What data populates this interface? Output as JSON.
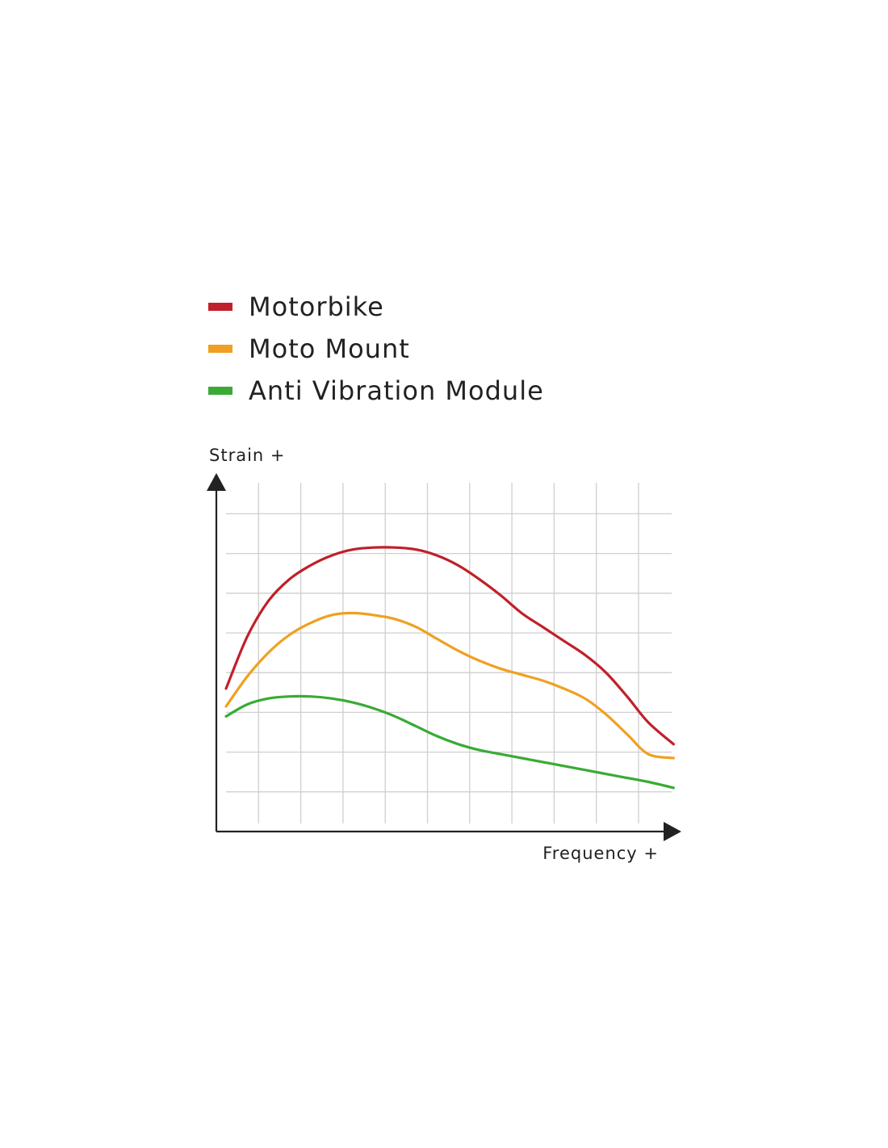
{
  "chart_data": {
    "type": "line",
    "title": "",
    "xlabel": "Frequency +",
    "ylabel": "Strain +",
    "xlim": [
      0,
      10.6
    ],
    "ylim": [
      0,
      8
    ],
    "grid": true,
    "legend_position": "top-left",
    "x": [
      0,
      0.5,
      1,
      1.5,
      2,
      2.5,
      3,
      3.5,
      4,
      4.5,
      5,
      5.5,
      6,
      6.5,
      7,
      7.5,
      8,
      8.5,
      9,
      9.5,
      10,
      10.6
    ],
    "series": [
      {
        "name": "Motorbike",
        "color": "#c0202a",
        "values": [
          3.6,
          4.9,
          5.8,
          6.35,
          6.7,
          6.95,
          7.1,
          7.15,
          7.15,
          7.1,
          6.95,
          6.7,
          6.35,
          5.95,
          5.5,
          5.15,
          4.8,
          4.45,
          4.0,
          3.4,
          2.75,
          2.2
        ]
      },
      {
        "name": "Moto Mount",
        "color": "#f0a020",
        "values": [
          3.15,
          3.9,
          4.5,
          4.95,
          5.25,
          5.45,
          5.5,
          5.45,
          5.35,
          5.15,
          4.85,
          4.55,
          4.3,
          4.1,
          3.95,
          3.8,
          3.6,
          3.35,
          2.95,
          2.45,
          1.95,
          1.85
        ]
      },
      {
        "name": "Anti Vibration Module",
        "color": "#3aaa35",
        "values": [
          2.9,
          3.2,
          3.35,
          3.4,
          3.4,
          3.35,
          3.25,
          3.1,
          2.9,
          2.65,
          2.4,
          2.2,
          2.05,
          1.95,
          1.85,
          1.75,
          1.65,
          1.55,
          1.45,
          1.35,
          1.25,
          1.1
        ]
      }
    ]
  }
}
